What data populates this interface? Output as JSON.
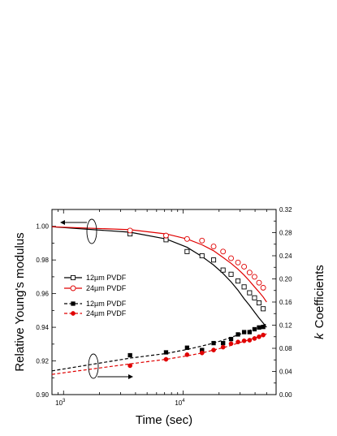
{
  "chart_data": {
    "type": "scatter",
    "title": "",
    "xlabel": "Time (sec)",
    "xscale": "log",
    "xlim": [
      800,
      60000
    ],
    "x_ticks": [
      {
        "value": 1000,
        "label": "10",
        "exp": "3"
      },
      {
        "value": 10000,
        "label": "10",
        "exp": "4"
      }
    ],
    "ylabel_left": "Relative Young's modulus",
    "ylim_left": [
      0.9,
      1.01
    ],
    "y_ticks_left": [
      "0.90",
      "0.92",
      "0.94",
      "0.96",
      "0.98",
      "1.00"
    ],
    "ylabel_right_prefix": "k",
    "ylabel_right": "Coefficients",
    "ylim_right": [
      0.0,
      0.32
    ],
    "y_ticks_right": [
      "0.00",
      "0.04",
      "0.08",
      "0.12",
      "0.16",
      "0.20",
      "0.24",
      "0.28",
      "0.32"
    ],
    "legend_position": "left",
    "grid": false,
    "series": [
      {
        "name": "12µm PVDF",
        "axis": "left",
        "color": "#000000",
        "marker": "open-square",
        "line": "solid",
        "points": [
          [
            3600,
            0.9955
          ],
          [
            7200,
            0.992
          ],
          [
            10800,
            0.985
          ],
          [
            14400,
            0.9825
          ],
          [
            18000,
            0.98
          ],
          [
            21600,
            0.974
          ],
          [
            25200,
            0.9715
          ],
          [
            28800,
            0.9675
          ],
          [
            32400,
            0.964
          ],
          [
            36000,
            0.9605
          ],
          [
            39600,
            0.9575
          ],
          [
            43200,
            0.9545
          ],
          [
            46800,
            0.951
          ]
        ],
        "fit": [
          [
            800,
            0.9997
          ],
          [
            3600,
            0.9965
          ],
          [
            7200,
            0.9925
          ],
          [
            10800,
            0.9875
          ],
          [
            14400,
            0.982
          ],
          [
            18000,
            0.977
          ],
          [
            21600,
            0.972
          ],
          [
            25200,
            0.967
          ],
          [
            28800,
            0.962
          ],
          [
            32400,
            0.957
          ],
          [
            36000,
            0.953
          ],
          [
            39600,
            0.949
          ],
          [
            43200,
            0.9455
          ],
          [
            46800,
            0.9425
          ],
          [
            50000,
            0.94
          ]
        ]
      },
      {
        "name": "24µm PVDF",
        "axis": "left",
        "color": "#e00000",
        "marker": "open-circle",
        "line": "solid",
        "points": [
          [
            3600,
            0.9975
          ],
          [
            7200,
            0.9945
          ],
          [
            10800,
            0.9925
          ],
          [
            14400,
            0.9915
          ],
          [
            18000,
            0.988
          ],
          [
            21600,
            0.985
          ],
          [
            25200,
            0.981
          ],
          [
            28800,
            0.9785
          ],
          [
            32400,
            0.976
          ],
          [
            36000,
            0.9725
          ],
          [
            39600,
            0.97
          ],
          [
            43200,
            0.9665
          ],
          [
            46800,
            0.9635
          ]
        ],
        "fit": [
          [
            800,
            0.9997
          ],
          [
            3600,
            0.998
          ],
          [
            7200,
            0.9955
          ],
          [
            10800,
            0.9925
          ],
          [
            14400,
            0.989
          ],
          [
            18000,
            0.9855
          ],
          [
            21600,
            0.9815
          ],
          [
            25200,
            0.978
          ],
          [
            28800,
            0.9745
          ],
          [
            32400,
            0.971
          ],
          [
            36000,
            0.9675
          ],
          [
            39600,
            0.964
          ],
          [
            43200,
            0.961
          ],
          [
            46800,
            0.958
          ],
          [
            50000,
            0.955
          ]
        ]
      },
      {
        "name": "12µm PVDF",
        "axis": "right",
        "color": "#000000",
        "marker": "filled-square",
        "line": "dashed",
        "points": [
          [
            3600,
            0.068
          ],
          [
            7200,
            0.073
          ],
          [
            10800,
            0.081
          ],
          [
            14400,
            0.077
          ],
          [
            18000,
            0.089
          ],
          [
            21600,
            0.089
          ],
          [
            25200,
            0.096
          ],
          [
            28800,
            0.104
          ],
          [
            32400,
            0.108
          ],
          [
            36000,
            0.108
          ],
          [
            39600,
            0.113
          ],
          [
            43200,
            0.116
          ],
          [
            46800,
            0.117
          ]
        ],
        "fit": [
          [
            800,
            0.041
          ],
          [
            3600,
            0.063
          ],
          [
            7200,
            0.071
          ],
          [
            10800,
            0.078
          ],
          [
            14400,
            0.084
          ],
          [
            18000,
            0.089
          ],
          [
            21600,
            0.094
          ],
          [
            25200,
            0.099
          ],
          [
            28800,
            0.103
          ],
          [
            32400,
            0.107
          ],
          [
            36000,
            0.111
          ],
          [
            39600,
            0.114
          ],
          [
            43200,
            0.117
          ],
          [
            46800,
            0.12
          ],
          [
            50000,
            0.122
          ]
        ]
      },
      {
        "name": "24µm PVDF",
        "axis": "right",
        "color": "#e00000",
        "marker": "filled-circle",
        "line": "dashed",
        "points": [
          [
            3600,
            0.05
          ],
          [
            7200,
            0.061
          ],
          [
            10800,
            0.069
          ],
          [
            14400,
            0.072
          ],
          [
            18000,
            0.077
          ],
          [
            21600,
            0.082
          ],
          [
            25200,
            0.088
          ],
          [
            28800,
            0.091
          ],
          [
            32400,
            0.093
          ],
          [
            36000,
            0.094
          ],
          [
            39600,
            0.097
          ],
          [
            43200,
            0.1
          ],
          [
            46800,
            0.103
          ]
        ],
        "fit": [
          [
            800,
            0.035
          ],
          [
            3600,
            0.053
          ],
          [
            7200,
            0.061
          ],
          [
            10800,
            0.067
          ],
          [
            14400,
            0.072
          ],
          [
            18000,
            0.077
          ],
          [
            21600,
            0.081
          ],
          [
            25200,
            0.085
          ],
          [
            28800,
            0.089
          ],
          [
            32400,
            0.092
          ],
          [
            36000,
            0.095
          ],
          [
            39600,
            0.098
          ],
          [
            43200,
            0.1
          ],
          [
            46800,
            0.103
          ],
          [
            50000,
            0.105
          ]
        ]
      }
    ]
  }
}
